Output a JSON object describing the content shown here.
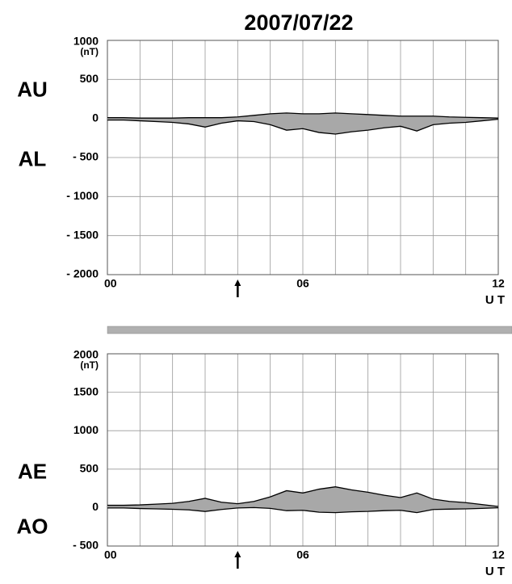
{
  "title": "2007/07/22",
  "chart_data": [
    {
      "type": "line",
      "fill_between": true,
      "fill_color": "#a8a8a8",
      "y_unit": "(nT)",
      "x_label": "U T",
      "arrow_x": 4,
      "x": [
        0,
        0.5,
        1,
        1.5,
        2,
        2.5,
        3,
        3.5,
        4,
        4.5,
        5,
        5.5,
        6,
        6.5,
        7,
        7.5,
        8,
        8.5,
        9,
        9.5,
        10,
        10.5,
        11,
        11.5,
        12
      ],
      "series": [
        {
          "name": "AU",
          "color": "#000000",
          "values": [
            10,
            10,
            5,
            5,
            5,
            10,
            10,
            10,
            20,
            40,
            60,
            70,
            60,
            60,
            70,
            60,
            50,
            40,
            30,
            30,
            30,
            20,
            15,
            10,
            5
          ]
        },
        {
          "name": "AL",
          "color": "#000000",
          "values": [
            -20,
            -20,
            -30,
            -40,
            -50,
            -70,
            -110,
            -60,
            -30,
            -40,
            -80,
            -150,
            -130,
            -180,
            -200,
            -170,
            -150,
            -120,
            -100,
            -160,
            -80,
            -60,
            -50,
            -30,
            -10
          ]
        }
      ],
      "xlim": [
        0,
        12
      ],
      "xticks": [
        {
          "value": 0,
          "label": "00"
        },
        {
          "value": 6,
          "label": "06"
        },
        {
          "value": 12,
          "label": "12"
        }
      ],
      "xgrid": [
        0,
        1,
        2,
        3,
        4,
        5,
        6,
        7,
        8,
        9,
        10,
        11,
        12
      ],
      "ylim": [
        -2000,
        1000
      ],
      "yticks": [
        1000,
        500,
        0,
        {
          "value": -500,
          "label": "- 500"
        },
        {
          "value": -1000,
          "label": "- 1000"
        },
        {
          "value": -1500,
          "label": "- 1500"
        },
        {
          "value": -2000,
          "label": "- 2000"
        }
      ],
      "grid": true
    },
    {
      "type": "line",
      "fill_between": true,
      "fill_color": "#a8a8a8",
      "y_unit": "(nT)",
      "x_label": "U T",
      "arrow_x": 4,
      "x": [
        0,
        0.5,
        1,
        1.5,
        2,
        2.5,
        3,
        3.5,
        4,
        4.5,
        5,
        5.5,
        6,
        6.5,
        7,
        7.5,
        8,
        8.5,
        9,
        9.5,
        10,
        10.5,
        11,
        11.5,
        12
      ],
      "series": [
        {
          "name": "AE",
          "color": "#000000",
          "values": [
            30,
            30,
            35,
            45,
            55,
            80,
            120,
            70,
            50,
            80,
            140,
            220,
            190,
            240,
            270,
            230,
            200,
            160,
            130,
            190,
            110,
            80,
            65,
            40,
            15
          ]
        },
        {
          "name": "AO",
          "color": "#000000",
          "values": [
            -5,
            -5,
            -12,
            -17,
            -22,
            -30,
            -50,
            -25,
            -5,
            0,
            -10,
            -40,
            -35,
            -60,
            -65,
            -55,
            -50,
            -40,
            -35,
            -65,
            -25,
            -20,
            -17,
            -10,
            -2
          ]
        }
      ],
      "xlim": [
        0,
        12
      ],
      "xticks": [
        {
          "value": 0,
          "label": "00"
        },
        {
          "value": 6,
          "label": "06"
        },
        {
          "value": 12,
          "label": "12"
        }
      ],
      "xgrid": [
        0,
        1,
        2,
        3,
        4,
        5,
        6,
        7,
        8,
        9,
        10,
        11,
        12
      ],
      "ylim": [
        -500,
        2000
      ],
      "yticks": [
        2000,
        1500,
        1000,
        500,
        0,
        {
          "value": -500,
          "label": "- 500"
        }
      ],
      "grid": true
    }
  ]
}
